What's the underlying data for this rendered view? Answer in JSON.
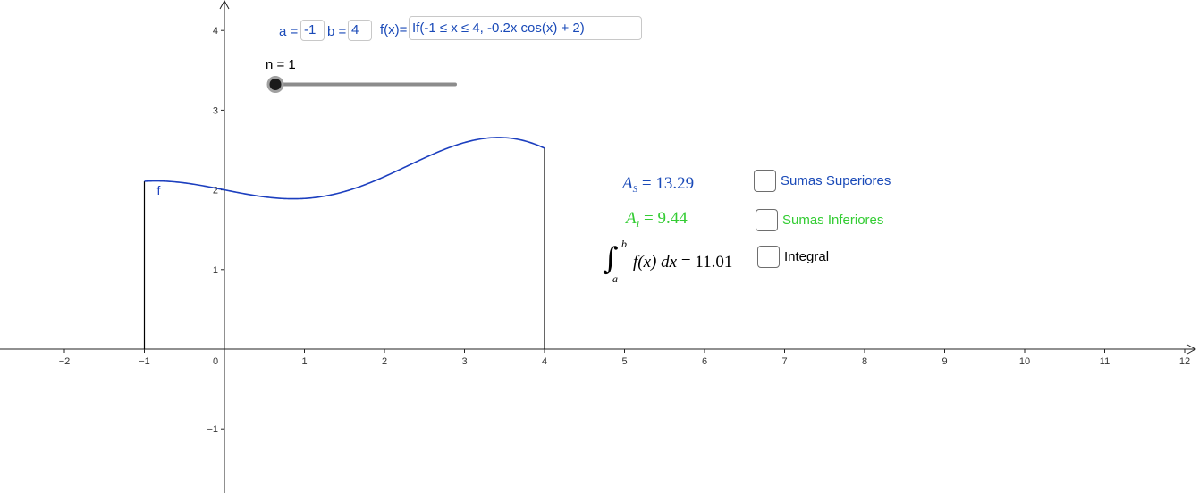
{
  "colors": {
    "blue": "#1a4ab8",
    "green": "#33cc33",
    "black": "#000000",
    "curve": "#1c3fbf",
    "axis": "#222222",
    "slider_track": "#8c8c8c"
  },
  "inputs": {
    "a_label": "a =",
    "a_value": "-1",
    "b_label": "b =",
    "b_value": "4",
    "f_label": "f(x)=",
    "f_value": "If(-1 ≤ x ≤ 4, -0.2x cos(x) + 2)"
  },
  "slider": {
    "label": "n = 1",
    "value": 1,
    "fraction": 0
  },
  "graph": {
    "curve_label": "f",
    "x_range": [
      -2.8,
      12.3
    ],
    "y_range": [
      -1.8,
      4.4
    ],
    "x_tick_labels": [
      "−2",
      "−1",
      "0",
      "1",
      "2",
      "3",
      "4",
      "5",
      "6",
      "7",
      "8",
      "9",
      "10",
      "11",
      "12"
    ],
    "x_tick_values": [
      -2,
      -1,
      0,
      1,
      2,
      3,
      4,
      5,
      6,
      7,
      8,
      9,
      10,
      11,
      12
    ],
    "y_tick_labels": [
      "−1",
      "1",
      "2",
      "3",
      "4"
    ],
    "y_tick_values": [
      -1,
      1,
      2,
      3,
      4
    ],
    "function_domain": [
      -1,
      4
    ]
  },
  "results": {
    "upper_sum_symbol": "A",
    "upper_sum_subscript": "S",
    "upper_sum_value": "= 13.29",
    "lower_sum_symbol": "A",
    "lower_sum_subscript": "I",
    "lower_sum_value": "= 9.44",
    "integral_lower_limit": "a",
    "integral_upper_limit": "b",
    "integral_body": "f(x) dx",
    "integral_value": "= 11.01"
  },
  "checkboxes": {
    "upper_label": "Sumas Superiores",
    "upper_checked": false,
    "lower_label": "Sumas Inferiores",
    "lower_checked": false,
    "integral_label": "Integral",
    "integral_checked": false
  }
}
